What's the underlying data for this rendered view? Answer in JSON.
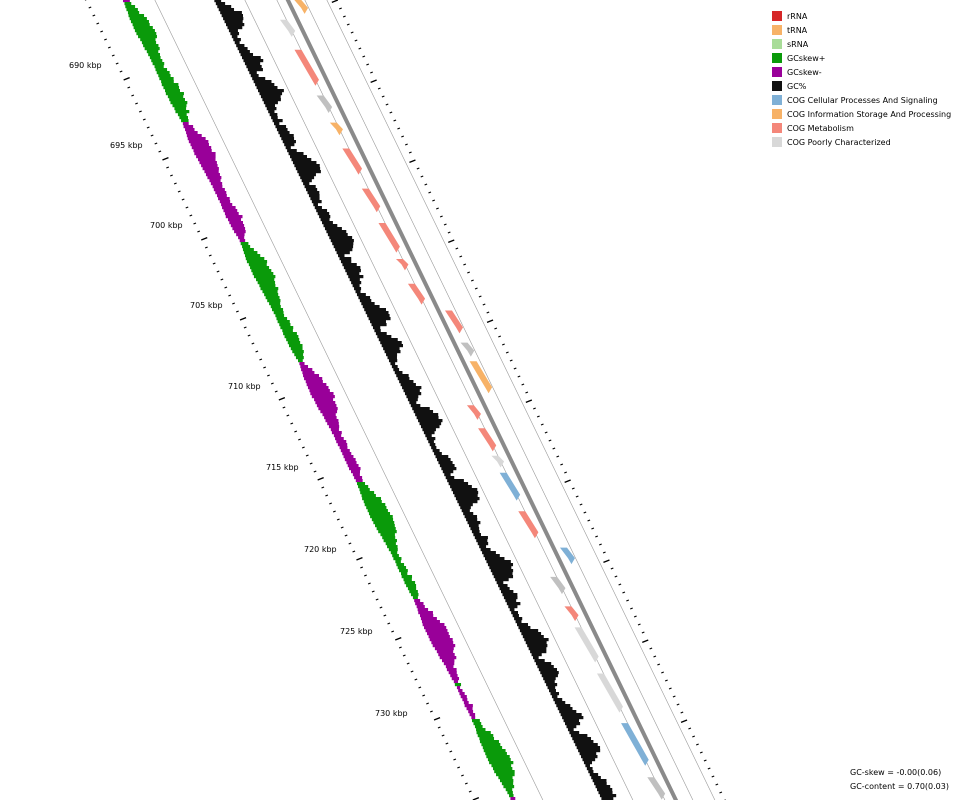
{
  "legend": [
    {
      "label": "rRNA",
      "color": "#d62728"
    },
    {
      "label": "tRNA",
      "color": "#f7b267"
    },
    {
      "label": "sRNA",
      "color": "#a8dc98"
    },
    {
      "label": "GCskew+",
      "color": "#0a9a0a"
    },
    {
      "label": "GCskew-",
      "color": "#990099"
    },
    {
      "label": "GC%",
      "color": "#111111"
    },
    {
      "label": "COG Cellular Processes And Signaling",
      "color": "#7fb0d6"
    },
    {
      "label": "COG Information Storage And Processing",
      "color": "#f7b267"
    },
    {
      "label": "COG Metabolism",
      "color": "#f4877a"
    },
    {
      "label": "COG Poorly Characterized",
      "color": "#d8d8d8"
    }
  ],
  "axis_labels": [
    "690 kbp",
    "695 kbp",
    "700 kbp",
    "705 kbp",
    "710 kbp",
    "715 kbp",
    "720 kbp",
    "725 kbp",
    "730 kbp"
  ],
  "stats": {
    "gc_skew": "GC-skew = -0.00(0.06)",
    "gc_content": "GC-content = 0.70(0.03)"
  },
  "colors": {
    "gc_plus": "#0a9a0a",
    "gc_minus": "#990099",
    "gc_content": "#111111",
    "backbone": "#8a8a8a",
    "cog_metabolism": "#f4877a",
    "cog_info": "#f7b267",
    "cog_cellular": "#7fb0d6",
    "cog_poor": "#d8d8d8",
    "unassigned": "#c0c0c0"
  }
}
